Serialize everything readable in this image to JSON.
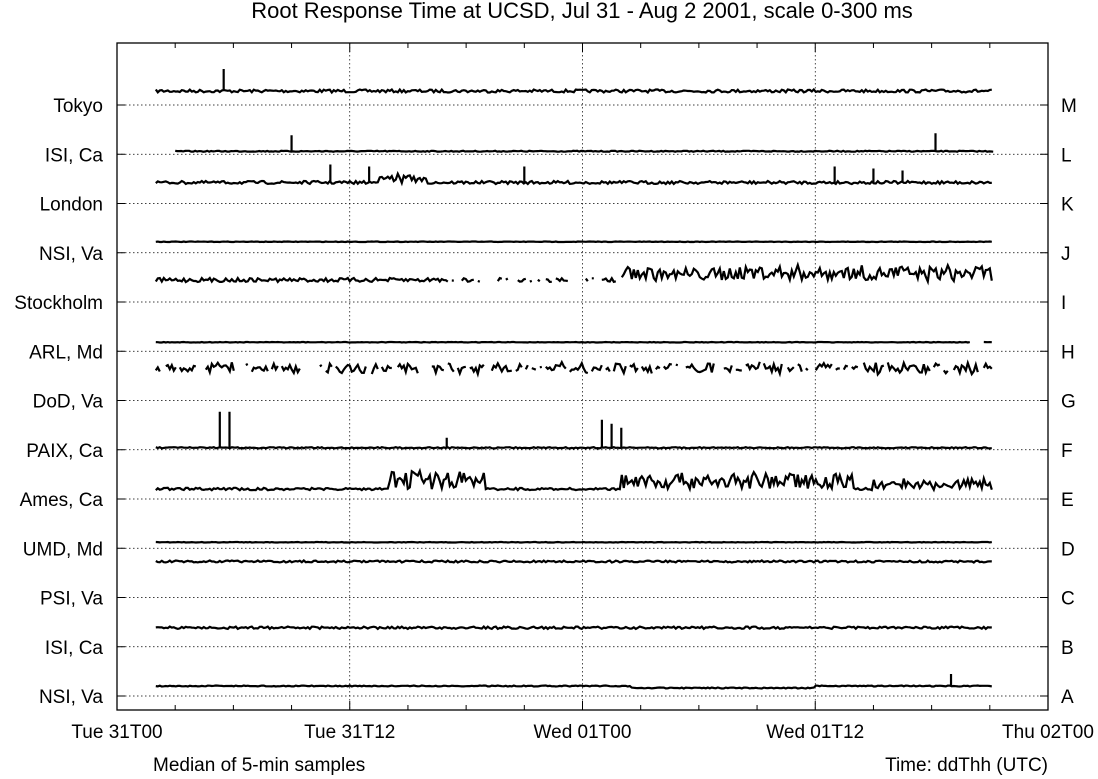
{
  "chart_data": {
    "type": "line",
    "title": "Root Response Time at UCSD, Jul 31 - Aug 2 2001, scale 0-300 ms",
    "subtitle_left": "Median of 5-min samples",
    "xlabel": "Time: ddThh (UTC)",
    "x_ticks": [
      "Tue 31T00",
      "Tue 31T12",
      "Wed 01T00",
      "Wed 01T12",
      "Thu 02T00"
    ],
    "x_range_hours": [
      0,
      48
    ],
    "grid": true,
    "per_row_scale_ms": [
      0,
      300
    ],
    "rows": [
      {
        "left": "Tokyo",
        "right": "M"
      },
      {
        "left": "ISI, Ca",
        "right": "L"
      },
      {
        "left": "London",
        "right": "K"
      },
      {
        "left": "NSI, Va",
        "right": "J"
      },
      {
        "left": "Stockholm",
        "right": "I"
      },
      {
        "left": "ARL, Md",
        "right": "H"
      },
      {
        "left": "DoD, Va",
        "right": "G"
      },
      {
        "left": "PAIX, Ca",
        "right": "F"
      },
      {
        "left": "Ames, Ca",
        "right": "E"
      },
      {
        "left": "UMD, Md",
        "right": "D"
      },
      {
        "left": "PSI, Va",
        "right": "C"
      },
      {
        "left": "ISI, Ca",
        "right": "B"
      },
      {
        "left": "NSI, Va",
        "right": "A"
      }
    ]
  }
}
